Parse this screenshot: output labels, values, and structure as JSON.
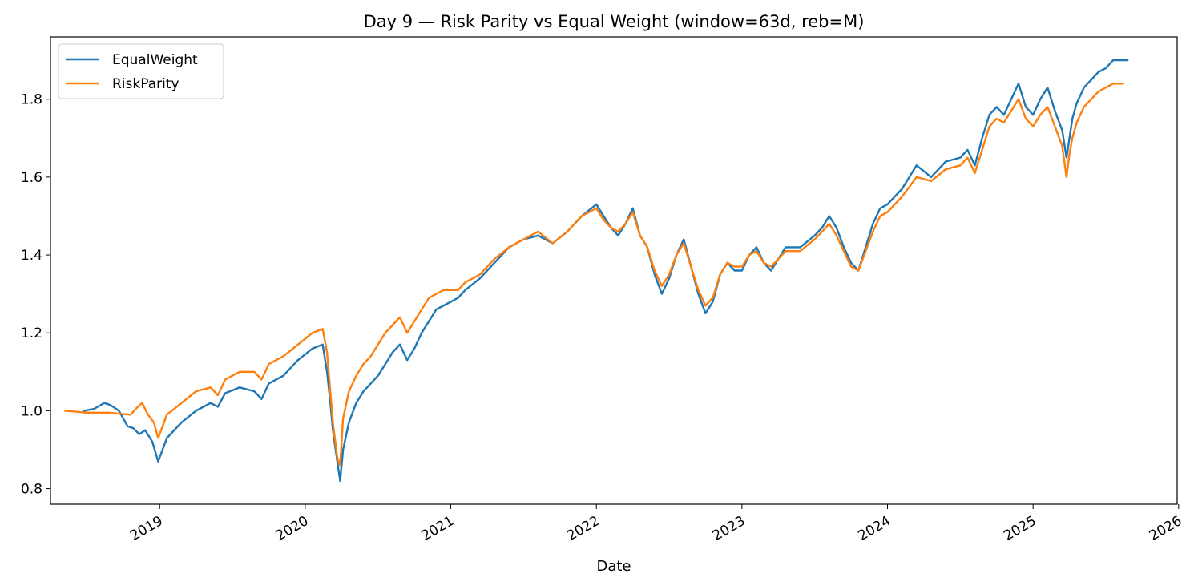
{
  "chart_data": {
    "type": "line",
    "title": "Day 9 — Risk Parity vs Equal Weight (window=63d, reb=M)",
    "xlabel": "Date",
    "ylabel": "",
    "xlim": [
      2018.25,
      2025.99
    ],
    "ylim": [
      0.76,
      1.96
    ],
    "yticks": [
      0.8,
      1.0,
      1.2,
      1.4,
      1.6,
      1.8
    ],
    "ytick_labels": [
      "0.8",
      "1.0",
      "1.2",
      "1.4",
      "1.6",
      "1.8"
    ],
    "xticks": [
      2019,
      2020,
      2021,
      2022,
      2023,
      2024,
      2025,
      2026
    ],
    "xtick_labels": [
      "2019",
      "2020",
      "2021",
      "2022",
      "2023",
      "2024",
      "2025",
      "2026"
    ],
    "grid": false,
    "legend_position": "top-left",
    "series": [
      {
        "name": "EqualWeight",
        "color": "#1f77b4",
        "x": [
          2018.48,
          2018.55,
          2018.62,
          2018.66,
          2018.72,
          2018.78,
          2018.82,
          2018.86,
          2018.9,
          2018.95,
          2018.99,
          2019.05,
          2019.15,
          2019.25,
          2019.35,
          2019.4,
          2019.45,
          2019.55,
          2019.65,
          2019.7,
          2019.75,
          2019.85,
          2019.95,
          2020.05,
          2020.12,
          2020.15,
          2020.17,
          2020.19,
          2020.22,
          2020.24,
          2020.26,
          2020.3,
          2020.35,
          2020.4,
          2020.45,
          2020.5,
          2020.55,
          2020.6,
          2020.65,
          2020.7,
          2020.75,
          2020.8,
          2020.85,
          2020.9,
          2020.95,
          2021.0,
          2021.05,
          2021.1,
          2021.2,
          2021.3,
          2021.4,
          2021.5,
          2021.6,
          2021.7,
          2021.8,
          2021.9,
          2022.0,
          2022.05,
          2022.1,
          2022.15,
          2022.2,
          2022.25,
          2022.3,
          2022.35,
          2022.4,
          2022.45,
          2022.5,
          2022.55,
          2022.6,
          2022.65,
          2022.7,
          2022.75,
          2022.8,
          2022.85,
          2022.9,
          2022.95,
          2023.0,
          2023.05,
          2023.1,
          2023.15,
          2023.2,
          2023.3,
          2023.4,
          2023.5,
          2023.55,
          2023.6,
          2023.65,
          2023.7,
          2023.75,
          2023.8,
          2023.85,
          2023.9,
          2023.95,
          2024.0,
          2024.1,
          2024.2,
          2024.3,
          2024.4,
          2024.5,
          2024.55,
          2024.6,
          2024.65,
          2024.7,
          2024.75,
          2024.8,
          2024.85,
          2024.9,
          2024.95,
          2025.0,
          2025.05,
          2025.1,
          2025.15,
          2025.2,
          2025.23,
          2025.25,
          2025.27,
          2025.3,
          2025.35,
          2025.4,
          2025.45,
          2025.5,
          2025.55,
          2025.6,
          2025.65
        ],
        "values": [
          1.0,
          1.005,
          1.02,
          1.015,
          1.0,
          0.96,
          0.955,
          0.94,
          0.95,
          0.92,
          0.87,
          0.93,
          0.97,
          1.0,
          1.02,
          1.01,
          1.045,
          1.06,
          1.05,
          1.03,
          1.07,
          1.09,
          1.13,
          1.16,
          1.17,
          1.1,
          1.03,
          0.95,
          0.87,
          0.82,
          0.9,
          0.97,
          1.02,
          1.05,
          1.07,
          1.09,
          1.12,
          1.15,
          1.17,
          1.13,
          1.16,
          1.2,
          1.23,
          1.26,
          1.27,
          1.28,
          1.29,
          1.31,
          1.34,
          1.38,
          1.42,
          1.44,
          1.45,
          1.43,
          1.46,
          1.5,
          1.53,
          1.5,
          1.47,
          1.45,
          1.48,
          1.52,
          1.45,
          1.42,
          1.35,
          1.3,
          1.34,
          1.4,
          1.44,
          1.37,
          1.3,
          1.25,
          1.28,
          1.35,
          1.38,
          1.36,
          1.36,
          1.4,
          1.42,
          1.38,
          1.36,
          1.42,
          1.42,
          1.45,
          1.47,
          1.5,
          1.47,
          1.42,
          1.38,
          1.36,
          1.42,
          1.48,
          1.52,
          1.53,
          1.57,
          1.63,
          1.6,
          1.64,
          1.65,
          1.67,
          1.63,
          1.7,
          1.76,
          1.78,
          1.76,
          1.8,
          1.84,
          1.78,
          1.76,
          1.8,
          1.83,
          1.77,
          1.72,
          1.65,
          1.7,
          1.75,
          1.79,
          1.83,
          1.85,
          1.87,
          1.88,
          1.9,
          1.9,
          1.9
        ]
      },
      {
        "name": "RiskParity",
        "color": "#ff7f0e",
        "x": [
          2018.35,
          2018.5,
          2018.65,
          2018.8,
          2018.85,
          2018.88,
          2018.92,
          2018.96,
          2018.99,
          2019.05,
          2019.15,
          2019.25,
          2019.35,
          2019.4,
          2019.45,
          2019.55,
          2019.65,
          2019.7,
          2019.75,
          2019.85,
          2019.95,
          2020.05,
          2020.12,
          2020.15,
          2020.17,
          2020.19,
          2020.22,
          2020.24,
          2020.26,
          2020.3,
          2020.35,
          2020.4,
          2020.45,
          2020.5,
          2020.55,
          2020.6,
          2020.65,
          2020.7,
          2020.75,
          2020.8,
          2020.85,
          2020.9,
          2020.95,
          2021.0,
          2021.05,
          2021.1,
          2021.2,
          2021.3,
          2021.4,
          2021.5,
          2021.6,
          2021.7,
          2021.8,
          2021.9,
          2022.0,
          2022.05,
          2022.1,
          2022.15,
          2022.2,
          2022.25,
          2022.3,
          2022.35,
          2022.4,
          2022.45,
          2022.5,
          2022.55,
          2022.6,
          2022.65,
          2022.7,
          2022.75,
          2022.8,
          2022.85,
          2022.9,
          2022.95,
          2023.0,
          2023.05,
          2023.1,
          2023.15,
          2023.2,
          2023.3,
          2023.4,
          2023.5,
          2023.55,
          2023.6,
          2023.65,
          2023.7,
          2023.75,
          2023.8,
          2023.85,
          2023.9,
          2023.95,
          2024.0,
          2024.1,
          2024.2,
          2024.3,
          2024.4,
          2024.5,
          2024.55,
          2024.6,
          2024.65,
          2024.7,
          2024.75,
          2024.8,
          2024.85,
          2024.9,
          2024.95,
          2025.0,
          2025.05,
          2025.1,
          2025.15,
          2025.2,
          2025.23,
          2025.25,
          2025.27,
          2025.3,
          2025.35,
          2025.4,
          2025.45,
          2025.5,
          2025.55,
          2025.6,
          2025.62
        ],
        "values": [
          1.0,
          0.995,
          0.995,
          0.99,
          1.01,
          1.02,
          0.99,
          0.97,
          0.93,
          0.99,
          1.02,
          1.05,
          1.06,
          1.04,
          1.08,
          1.1,
          1.1,
          1.08,
          1.12,
          1.14,
          1.17,
          1.2,
          1.21,
          1.15,
          1.06,
          0.97,
          0.88,
          0.86,
          0.98,
          1.05,
          1.09,
          1.12,
          1.14,
          1.17,
          1.2,
          1.22,
          1.24,
          1.2,
          1.23,
          1.26,
          1.29,
          1.3,
          1.31,
          1.31,
          1.31,
          1.33,
          1.35,
          1.39,
          1.42,
          1.44,
          1.46,
          1.43,
          1.46,
          1.5,
          1.52,
          1.49,
          1.47,
          1.46,
          1.48,
          1.51,
          1.45,
          1.42,
          1.36,
          1.32,
          1.35,
          1.4,
          1.43,
          1.37,
          1.31,
          1.27,
          1.29,
          1.35,
          1.38,
          1.37,
          1.37,
          1.4,
          1.41,
          1.38,
          1.37,
          1.41,
          1.41,
          1.44,
          1.46,
          1.48,
          1.45,
          1.41,
          1.37,
          1.36,
          1.41,
          1.46,
          1.5,
          1.51,
          1.55,
          1.6,
          1.59,
          1.62,
          1.63,
          1.65,
          1.61,
          1.67,
          1.73,
          1.75,
          1.74,
          1.77,
          1.8,
          1.75,
          1.73,
          1.76,
          1.78,
          1.73,
          1.68,
          1.6,
          1.66,
          1.7,
          1.74,
          1.78,
          1.8,
          1.82,
          1.83,
          1.84,
          1.84,
          1.84
        ]
      }
    ]
  }
}
